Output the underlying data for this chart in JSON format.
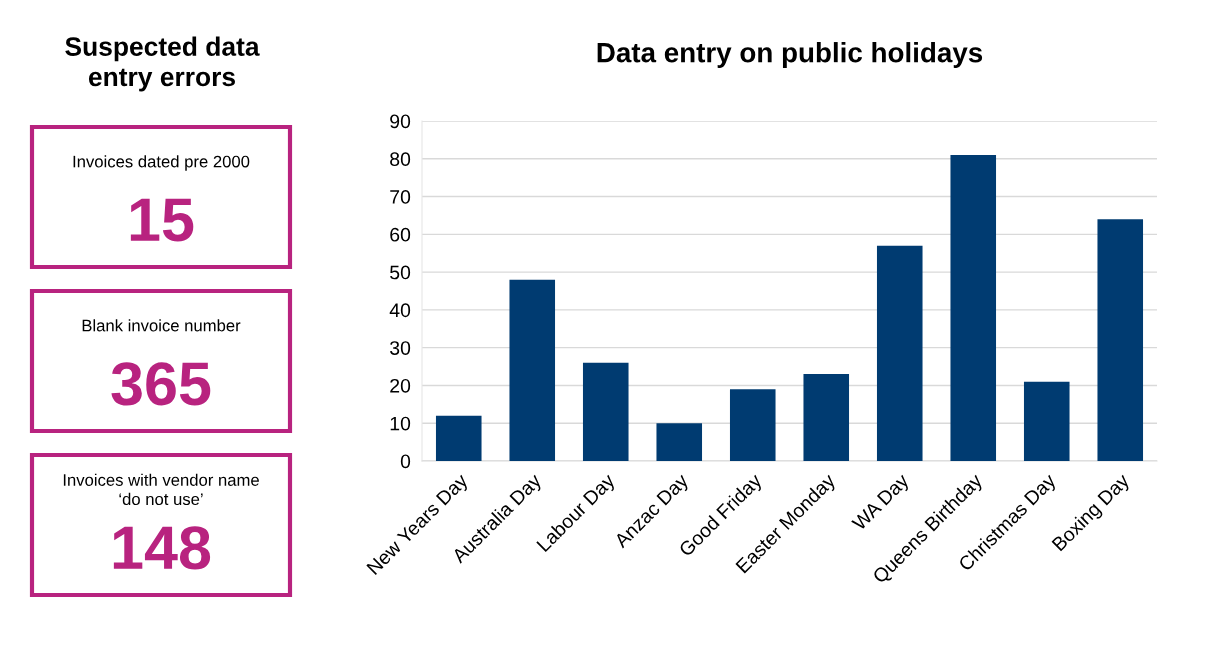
{
  "chart_data": [
    {
      "type": "other",
      "title": "Suspected data\nentry errors",
      "categories": [
        "Invoices dated pre 2000",
        "Blank invoice number",
        "Invoices with vendor name\n‘do not use’"
      ],
      "values": [
        15,
        365,
        148
      ],
      "color": "#b8237f",
      "data_labels": true
    },
    {
      "type": "bar",
      "title": "Data entry on public holidays",
      "categories": [
        "New Years Day",
        "Australia Day",
        "Labour Day",
        "Anzac Day",
        "Good Friday",
        "Easter Monday",
        "WA Day",
        "Queens Birthday",
        "Christmas Day",
        "Boxing Day"
      ],
      "values": [
        12,
        48,
        26,
        10,
        19,
        23,
        57,
        81,
        21,
        64
      ],
      "color": "#003b71",
      "ylim": [
        0,
        90
      ],
      "yticks": [
        0,
        10,
        20,
        30,
        40,
        50,
        60,
        70,
        80,
        90
      ],
      "grid": "y",
      "legend": false
    }
  ]
}
